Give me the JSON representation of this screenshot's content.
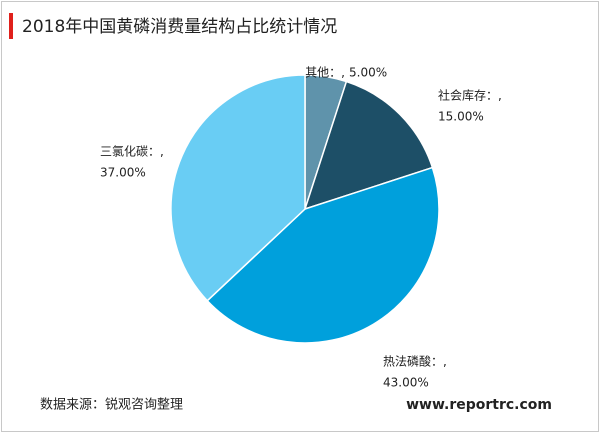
{
  "chart_data": {
    "type": "pie",
    "title": "2018年中国黄磷消费量结构占比统计情况",
    "categories": [
      "其他：,",
      "社会库存：,",
      "热法磷酸：,",
      "三氯化碳：,"
    ],
    "values": [
      5,
      15,
      43,
      37
    ],
    "value_labels": [
      "5.00%",
      "15.00%",
      "43.00%",
      "37.00%"
    ],
    "colors": [
      "#5f93ab",
      "#1d4f67",
      "#00a0dc",
      "#69cdf4"
    ],
    "source": "数据来源：锐观咨询整理",
    "website": "www.reportrc.com"
  }
}
